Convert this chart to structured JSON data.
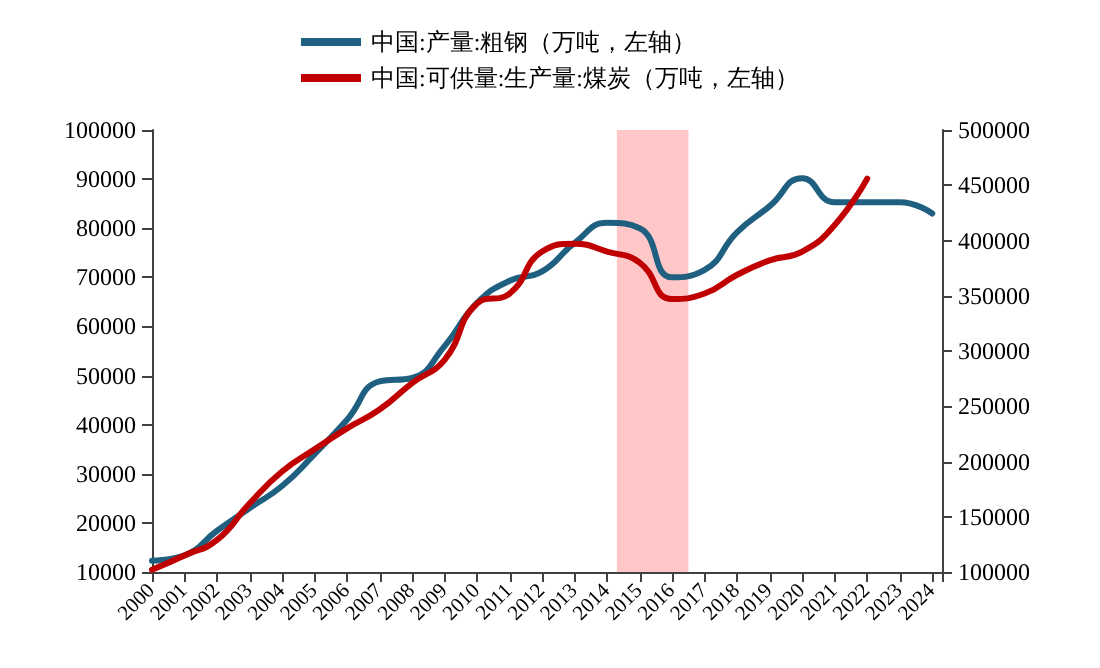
{
  "chart_data": {
    "type": "line",
    "x": [
      2000,
      2001,
      2002,
      2003,
      2004,
      2005,
      2006,
      2007,
      2008,
      2009,
      2010,
      2011,
      2012,
      2013,
      2014,
      2015,
      2016,
      2017,
      2018,
      2019,
      2020,
      2021,
      2022,
      2023,
      2024
    ],
    "series": [
      {
        "name": "中国:产量:粗钢（万吨，左轴）",
        "color": "#1f5f80",
        "values": [
          12300,
          13400,
          18400,
          23000,
          27500,
          34000,
          41000,
          48800,
          49500,
          56000,
          64800,
          69300,
          71200,
          77000,
          81100,
          80000,
          70000,
          71500,
          79200,
          84500,
          90200,
          85300,
          85300,
          85300,
          83000
        ]
      },
      {
        "name": "中国:可供量:生产量:煤炭（万吨，左轴）",
        "color": "#c00000",
        "axis": "y2",
        "values": [
          102000,
          115000,
          129000,
          162000,
          191000,
          211000,
          230000,
          247000,
          271000,
          292000,
          343000,
          352000,
          390000,
          397000,
          390000,
          380000,
          347000,
          352000,
          369000,
          382000,
          390000,
          414000,
          456000,
          null,
          null
        ]
      }
    ],
    "xlim": [
      2000,
      2024.3
    ],
    "xticks": [
      2000,
      2001,
      2002,
      2003,
      2004,
      2005,
      2006,
      2007,
      2008,
      2009,
      2010,
      2011,
      2012,
      2013,
      2014,
      2015,
      2016,
      2017,
      2018,
      2019,
      2020,
      2021,
      2022,
      2023,
      2024
    ],
    "ylim": [
      10000,
      100000
    ],
    "yticks": [
      10000,
      20000,
      30000,
      40000,
      50000,
      60000,
      70000,
      80000,
      90000,
      100000
    ],
    "y2lim": [
      100000,
      500000
    ],
    "y2ticks": [
      100000,
      150000,
      200000,
      250000,
      300000,
      350000,
      400000,
      450000,
      500000
    ],
    "bands": [
      {
        "axis": "x",
        "from": 2014.3,
        "to": 2016.5,
        "color": "#ffc7c7"
      }
    ],
    "legend": "top",
    "grid": false,
    "marker": "none",
    "line_style": "solid"
  }
}
